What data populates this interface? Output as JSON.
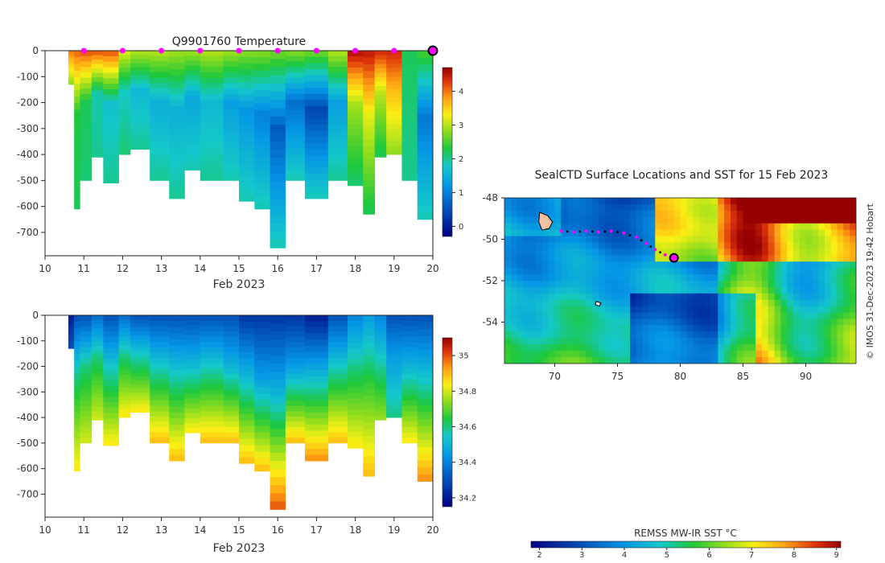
{
  "chart_data": [
    {
      "type": "heatmap",
      "id": "temperature",
      "title": "Q9901760  Temperature",
      "xlabel": "Feb 2023",
      "ylabel": "",
      "xlim": [
        10,
        20
      ],
      "ylim": [
        -790,
        0
      ],
      "x_ticks": [
        "10",
        "11",
        "12",
        "13",
        "14",
        "15",
        "16",
        "17",
        "18",
        "19",
        "20"
      ],
      "y_ticks": [
        "0",
        "-100",
        "-200",
        "-300",
        "-400",
        "-500",
        "-600",
        "-700"
      ],
      "colorbar": {
        "ticks": [
          "0",
          "1",
          "2",
          "3",
          "4"
        ],
        "range": [
          -0.3,
          4.7
        ]
      },
      "surface_markers_x": [
        11,
        12,
        13,
        14,
        15,
        16,
        17,
        18,
        19
      ],
      "last_marker_x": 20,
      "profiles": [
        {
          "x0": 10.6,
          "x1": 10.75,
          "depth": 130,
          "surf": 4.0,
          "mid": 3.5,
          "deep": 2.8
        },
        {
          "x0": 10.75,
          "x1": 10.9,
          "depth": 610,
          "surf": 4.1,
          "mid": 2.3,
          "deep": 2.2
        },
        {
          "x0": 10.9,
          "x1": 11.2,
          "depth": 500,
          "surf": 4.2,
          "mid": 2.2,
          "deep": 2.1
        },
        {
          "x0": 11.2,
          "x1": 11.5,
          "depth": 410,
          "surf": 4.2,
          "mid": 1.9,
          "deep": 2.0
        },
        {
          "x0": 11.5,
          "x1": 11.9,
          "depth": 510,
          "surf": 4.2,
          "mid": 1.7,
          "deep": 2.0
        },
        {
          "x0": 11.9,
          "x1": 12.2,
          "depth": 400,
          "surf": 3.2,
          "mid": 1.8,
          "deep": 2.1
        },
        {
          "x0": 12.2,
          "x1": 12.7,
          "depth": 380,
          "surf": 3.0,
          "mid": 1.6,
          "deep": 2.0
        },
        {
          "x0": 12.7,
          "x1": 13.2,
          "depth": 500,
          "surf": 3.0,
          "mid": 1.5,
          "deep": 2.0
        },
        {
          "x0": 13.2,
          "x1": 13.6,
          "depth": 570,
          "surf": 2.9,
          "mid": 1.5,
          "deep": 2.0
        },
        {
          "x0": 13.6,
          "x1": 14.0,
          "depth": 460,
          "surf": 2.9,
          "mid": 1.4,
          "deep": 1.9
        },
        {
          "x0": 14.0,
          "x1": 14.6,
          "depth": 500,
          "surf": 3.0,
          "mid": 1.6,
          "deep": 2.0
        },
        {
          "x0": 14.6,
          "x1": 15.0,
          "depth": 500,
          "surf": 2.9,
          "mid": 1.3,
          "deep": 1.9
        },
        {
          "x0": 15.0,
          "x1": 15.4,
          "depth": 580,
          "surf": 2.8,
          "mid": 1.2,
          "deep": 1.9
        },
        {
          "x0": 15.4,
          "x1": 15.8,
          "depth": 610,
          "surf": 2.8,
          "mid": 1.0,
          "deep": 1.9
        },
        {
          "x0": 15.8,
          "x1": 16.2,
          "depth": 760,
          "surf": 2.7,
          "mid": 0.6,
          "deep": 1.9
        },
        {
          "x0": 16.2,
          "x1": 16.7,
          "depth": 500,
          "surf": 2.8,
          "mid": 0.8,
          "deep": 1.9
        },
        {
          "x0": 16.7,
          "x1": 17.3,
          "depth": 570,
          "surf": 2.7,
          "mid": 0.4,
          "deep": 1.9
        },
        {
          "x0": 17.3,
          "x1": 17.8,
          "depth": 500,
          "surf": 3.0,
          "mid": 1.3,
          "deep": 2.0
        },
        {
          "x0": 17.8,
          "x1": 18.2,
          "depth": 520,
          "surf": 4.6,
          "mid": 2.9,
          "deep": 2.1
        },
        {
          "x0": 18.2,
          "x1": 18.5,
          "depth": 630,
          "surf": 4.5,
          "mid": 3.2,
          "deep": 2.2
        },
        {
          "x0": 18.5,
          "x1": 18.8,
          "depth": 410,
          "surf": 4.4,
          "mid": 3.0,
          "deep": 2.2
        },
        {
          "x0": 18.8,
          "x1": 19.2,
          "depth": 400,
          "surf": 4.4,
          "mid": 3.6,
          "deep": 2.8
        },
        {
          "x0": 19.2,
          "x1": 19.6,
          "depth": 500,
          "surf": 2.2,
          "mid": 2.1,
          "deep": 2.0
        },
        {
          "x0": 19.6,
          "x1": 20.0,
          "depth": 650,
          "surf": 2.5,
          "mid": 0.9,
          "deep": 1.9
        }
      ]
    },
    {
      "type": "heatmap",
      "id": "salinity",
      "title": "",
      "xlabel": "Feb 2023",
      "ylabel": "",
      "xlim": [
        10,
        20
      ],
      "ylim": [
        -790,
        0
      ],
      "x_ticks": [
        "10",
        "11",
        "12",
        "13",
        "14",
        "15",
        "16",
        "17",
        "18",
        "19",
        "20"
      ],
      "y_ticks": [
        "0",
        "-100",
        "-200",
        "-300",
        "-400",
        "-500",
        "-600",
        "-700"
      ],
      "colorbar": {
        "ticks": [
          "34.2",
          "34.4",
          "34.6",
          "34.8",
          "35"
        ],
        "range": [
          34.15,
          35.1
        ]
      },
      "profiles": [
        {
          "x0": 10.6,
          "x1": 10.75,
          "depth": 130,
          "surf": 34.2,
          "mid": 34.25,
          "deep": 34.3
        },
        {
          "x0": 10.75,
          "x1": 10.9,
          "depth": 610,
          "surf": 34.3,
          "mid": 34.6,
          "deep": 34.85
        },
        {
          "x0": 10.9,
          "x1": 11.2,
          "depth": 500,
          "surf": 34.3,
          "mid": 34.6,
          "deep": 34.8
        },
        {
          "x0": 11.2,
          "x1": 11.5,
          "depth": 410,
          "surf": 34.35,
          "mid": 34.6,
          "deep": 34.8
        },
        {
          "x0": 11.5,
          "x1": 11.9,
          "depth": 510,
          "surf": 34.3,
          "mid": 34.55,
          "deep": 34.85
        },
        {
          "x0": 11.9,
          "x1": 12.2,
          "depth": 400,
          "surf": 34.35,
          "mid": 34.6,
          "deep": 34.85
        },
        {
          "x0": 12.2,
          "x1": 12.7,
          "depth": 380,
          "surf": 34.3,
          "mid": 34.55,
          "deep": 34.85
        },
        {
          "x0": 12.7,
          "x1": 13.2,
          "depth": 500,
          "surf": 34.3,
          "mid": 34.55,
          "deep": 34.9
        },
        {
          "x0": 13.2,
          "x1": 13.6,
          "depth": 570,
          "surf": 34.3,
          "mid": 34.55,
          "deep": 34.9
        },
        {
          "x0": 13.6,
          "x1": 14.0,
          "depth": 460,
          "surf": 34.3,
          "mid": 34.5,
          "deep": 34.85
        },
        {
          "x0": 14.0,
          "x1": 14.6,
          "depth": 500,
          "surf": 34.3,
          "mid": 34.55,
          "deep": 34.9
        },
        {
          "x0": 14.6,
          "x1": 15.0,
          "depth": 500,
          "surf": 34.3,
          "mid": 34.5,
          "deep": 34.9
        },
        {
          "x0": 15.0,
          "x1": 15.4,
          "depth": 580,
          "surf": 34.25,
          "mid": 34.5,
          "deep": 34.9
        },
        {
          "x0": 15.4,
          "x1": 15.8,
          "depth": 610,
          "surf": 34.25,
          "mid": 34.45,
          "deep": 34.9
        },
        {
          "x0": 15.8,
          "x1": 16.2,
          "depth": 760,
          "surf": 34.25,
          "mid": 34.5,
          "deep": 35.0
        },
        {
          "x0": 16.2,
          "x1": 16.7,
          "depth": 500,
          "surf": 34.25,
          "mid": 34.45,
          "deep": 34.9
        },
        {
          "x0": 16.7,
          "x1": 17.3,
          "depth": 570,
          "surf": 34.2,
          "mid": 34.5,
          "deep": 34.95
        },
        {
          "x0": 17.3,
          "x1": 17.8,
          "depth": 500,
          "surf": 34.3,
          "mid": 34.55,
          "deep": 34.9
        },
        {
          "x0": 17.8,
          "x1": 18.2,
          "depth": 520,
          "surf": 34.4,
          "mid": 34.6,
          "deep": 34.85
        },
        {
          "x0": 18.2,
          "x1": 18.5,
          "depth": 630,
          "surf": 34.45,
          "mid": 34.65,
          "deep": 34.9
        },
        {
          "x0": 18.5,
          "x1": 18.8,
          "depth": 410,
          "surf": 34.4,
          "mid": 34.55,
          "deep": 34.75
        },
        {
          "x0": 18.8,
          "x1": 19.2,
          "depth": 400,
          "surf": 34.3,
          "mid": 34.45,
          "deep": 34.6
        },
        {
          "x0": 19.2,
          "x1": 19.6,
          "depth": 500,
          "surf": 34.3,
          "mid": 34.5,
          "deep": 34.85
        },
        {
          "x0": 19.6,
          "x1": 20.0,
          "depth": 650,
          "surf": 34.3,
          "mid": 34.55,
          "deep": 34.95
        }
      ]
    },
    {
      "type": "heatmap",
      "id": "sst-map",
      "title": "SealCTD Surface Locations and SST for 15 Feb 2023",
      "xlabel": "",
      "ylabel": "",
      "xlim": [
        66,
        94
      ],
      "ylim": [
        -56,
        -48
      ],
      "x_ticks": [
        "70",
        "75",
        "80",
        "85",
        "90"
      ],
      "y_ticks": [
        "-48",
        "-50",
        "-52",
        "-54"
      ],
      "credit": "© IMOS 31-Dec-2023 19:42 Hobart",
      "colorbar": {
        "label": "REMSS MW-IR SST °C",
        "ticks": [
          "2",
          "3",
          "4",
          "5",
          "6",
          "7",
          "8",
          "9"
        ],
        "range": [
          1.8,
          9.1
        ]
      },
      "track": [
        {
          "lon": 70.5,
          "lat": -49.6
        },
        {
          "lon": 71.5,
          "lat": -49.65
        },
        {
          "lon": 72.5,
          "lat": -49.6
        },
        {
          "lon": 73.5,
          "lat": -49.65
        },
        {
          "lon": 74.5,
          "lat": -49.6
        },
        {
          "lon": 75.5,
          "lat": -49.7
        },
        {
          "lon": 76.5,
          "lat": -49.9
        },
        {
          "lon": 77.3,
          "lat": -50.2
        },
        {
          "lon": 78.0,
          "lat": -50.5
        },
        {
          "lon": 78.8,
          "lat": -50.75
        }
      ],
      "current_position": {
        "lon": 79.5,
        "lat": -50.9
      }
    }
  ]
}
